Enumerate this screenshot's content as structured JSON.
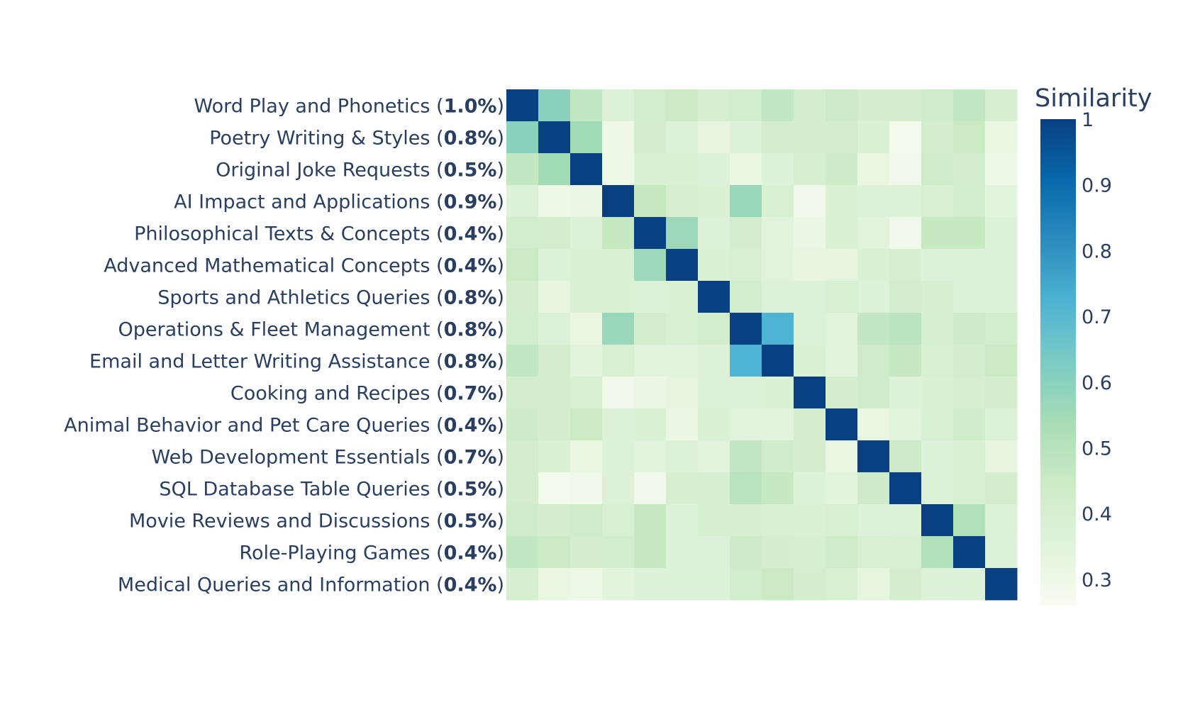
{
  "chart_data": {
    "type": "heatmap",
    "rows": [
      {
        "label": "Word Play and Phonetics",
        "share": "1.0%"
      },
      {
        "label": "Poetry Writing & Styles",
        "share": "0.8%"
      },
      {
        "label": "Original Joke Requests",
        "share": "0.5%"
      },
      {
        "label": "AI Impact and Applications",
        "share": "0.9%"
      },
      {
        "label": "Philosophical Texts & Concepts",
        "share": "0.4%"
      },
      {
        "label": "Advanced Mathematical Concepts",
        "share": "0.4%"
      },
      {
        "label": "Sports and Athletics Queries",
        "share": "0.8%"
      },
      {
        "label": "Operations & Fleet Management",
        "share": "0.8%"
      },
      {
        "label": "Email and Letter Writing Assistance",
        "share": "0.8%"
      },
      {
        "label": "Cooking and Recipes",
        "share": "0.7%"
      },
      {
        "label": "Animal Behavior and Pet Care Queries",
        "share": "0.4%"
      },
      {
        "label": "Web Development Essentials",
        "share": "0.7%"
      },
      {
        "label": "SQL Database Table Queries",
        "share": "0.5%"
      },
      {
        "label": "Movie Reviews and Discussions",
        "share": "0.5%"
      },
      {
        "label": "Role-Playing Games",
        "share": "0.4%"
      },
      {
        "label": "Medical Queries and Information",
        "share": "0.4%"
      }
    ],
    "matrix": [
      [
        1.0,
        0.6,
        0.47,
        0.37,
        0.42,
        0.45,
        0.4,
        0.42,
        0.47,
        0.41,
        0.44,
        0.41,
        0.41,
        0.43,
        0.47,
        0.4
      ],
      [
        0.6,
        1.0,
        0.55,
        0.3,
        0.41,
        0.37,
        0.33,
        0.37,
        0.41,
        0.41,
        0.41,
        0.38,
        0.28,
        0.41,
        0.45,
        0.32
      ],
      [
        0.47,
        0.55,
        1.0,
        0.3,
        0.38,
        0.38,
        0.37,
        0.32,
        0.36,
        0.4,
        0.44,
        0.32,
        0.29,
        0.43,
        0.41,
        0.3
      ],
      [
        0.37,
        0.3,
        0.31,
        1.0,
        0.46,
        0.4,
        0.38,
        0.57,
        0.39,
        0.29,
        0.38,
        0.37,
        0.37,
        0.39,
        0.42,
        0.34
      ],
      [
        0.42,
        0.41,
        0.37,
        0.46,
        1.0,
        0.56,
        0.36,
        0.41,
        0.35,
        0.31,
        0.38,
        0.35,
        0.29,
        0.46,
        0.46,
        0.36
      ],
      [
        0.45,
        0.37,
        0.38,
        0.38,
        0.56,
        1.0,
        0.38,
        0.39,
        0.35,
        0.33,
        0.33,
        0.38,
        0.4,
        0.36,
        0.36,
        0.36
      ],
      [
        0.41,
        0.33,
        0.38,
        0.38,
        0.37,
        0.38,
        1.0,
        0.42,
        0.37,
        0.37,
        0.39,
        0.36,
        0.41,
        0.4,
        0.37,
        0.36
      ],
      [
        0.42,
        0.37,
        0.32,
        0.57,
        0.41,
        0.39,
        0.42,
        1.0,
        0.72,
        0.37,
        0.35,
        0.47,
        0.49,
        0.4,
        0.44,
        0.42
      ],
      [
        0.47,
        0.41,
        0.35,
        0.39,
        0.35,
        0.34,
        0.36,
        0.72,
        1.0,
        0.38,
        0.34,
        0.43,
        0.46,
        0.39,
        0.41,
        0.45
      ],
      [
        0.41,
        0.41,
        0.39,
        0.29,
        0.31,
        0.33,
        0.37,
        0.37,
        0.38,
        1.0,
        0.41,
        0.43,
        0.36,
        0.38,
        0.4,
        0.41
      ],
      [
        0.44,
        0.41,
        0.45,
        0.37,
        0.38,
        0.31,
        0.38,
        0.35,
        0.34,
        0.41,
        1.0,
        0.32,
        0.34,
        0.39,
        0.43,
        0.37
      ],
      [
        0.41,
        0.38,
        0.32,
        0.36,
        0.35,
        0.37,
        0.34,
        0.47,
        0.43,
        0.41,
        0.32,
        1.0,
        0.44,
        0.36,
        0.39,
        0.33
      ],
      [
        0.41,
        0.28,
        0.29,
        0.37,
        0.29,
        0.4,
        0.4,
        0.49,
        0.46,
        0.36,
        0.34,
        0.44,
        1.0,
        0.37,
        0.39,
        0.41
      ],
      [
        0.43,
        0.41,
        0.43,
        0.39,
        0.46,
        0.36,
        0.4,
        0.4,
        0.39,
        0.38,
        0.39,
        0.36,
        0.37,
        1.0,
        0.52,
        0.37
      ],
      [
        0.47,
        0.45,
        0.41,
        0.42,
        0.46,
        0.36,
        0.37,
        0.44,
        0.41,
        0.4,
        0.43,
        0.39,
        0.39,
        0.52,
        1.0,
        0.36
      ],
      [
        0.4,
        0.32,
        0.3,
        0.34,
        0.36,
        0.36,
        0.36,
        0.42,
        0.45,
        0.41,
        0.39,
        0.33,
        0.41,
        0.37,
        0.36,
        1.0
      ]
    ],
    "colorbar": {
      "title": "Similarity",
      "min": 0.26,
      "max": 1.0,
      "ticks": [
        {
          "value": 1.0,
          "label": "1"
        },
        {
          "value": 0.9,
          "label": "0.9"
        },
        {
          "value": 0.8,
          "label": "0.8"
        },
        {
          "value": 0.7,
          "label": "0.7"
        },
        {
          "value": 0.6,
          "label": "0.6"
        },
        {
          "value": 0.5,
          "label": "0.5"
        },
        {
          "value": 0.4,
          "label": "0.4"
        },
        {
          "value": 0.3,
          "label": "0.3"
        }
      ],
      "colorscale": [
        [
          0.0,
          "#f7fcf0"
        ],
        [
          0.125,
          "#e0f3db"
        ],
        [
          0.25,
          "#ccebc5"
        ],
        [
          0.375,
          "#a8ddb5"
        ],
        [
          0.5,
          "#7bccc4"
        ],
        [
          0.625,
          "#4eb3d3"
        ],
        [
          0.75,
          "#2b8cbe"
        ],
        [
          0.875,
          "#0868ac"
        ],
        [
          1.0,
          "#084081"
        ]
      ]
    }
  }
}
